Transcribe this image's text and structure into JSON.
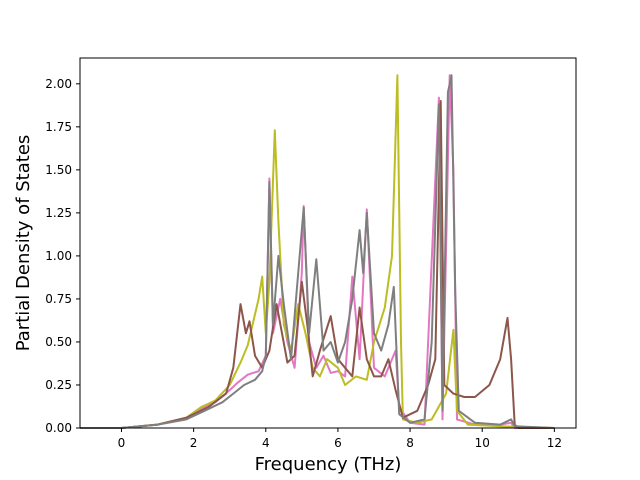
{
  "chart_data": {
    "type": "line",
    "title": "",
    "xlabel": "Frequency (THz)",
    "ylabel": "Partial Density of States",
    "xlim": [
      -1.15,
      12.6
    ],
    "ylim": [
      0,
      2.15
    ],
    "xticks": [
      0,
      2,
      4,
      6,
      8,
      10,
      12
    ],
    "yticks": [
      0.0,
      0.25,
      0.5,
      0.75,
      1.0,
      1.25,
      1.5,
      1.75,
      2.0
    ],
    "xtick_labels": [
      "0",
      "2",
      "4",
      "6",
      "8",
      "10",
      "12"
    ],
    "ytick_labels": [
      "0.00",
      "0.25",
      "0.50",
      "0.75",
      "1.00",
      "1.25",
      "1.50",
      "1.75",
      "2.00"
    ],
    "grid": false,
    "legend": "none",
    "series": [
      {
        "color": "#e377c2",
        "points": [
          [
            -1.15,
            0
          ],
          [
            0,
            0
          ],
          [
            1,
            0.02
          ],
          [
            1.8,
            0.06
          ],
          [
            2.2,
            0.11
          ],
          [
            2.6,
            0.15
          ],
          [
            3.0,
            0.22
          ],
          [
            3.2,
            0.26
          ],
          [
            3.5,
            0.31
          ],
          [
            3.8,
            0.33
          ],
          [
            4.0,
            0.42
          ],
          [
            4.1,
            1.45
          ],
          [
            4.2,
            0.55
          ],
          [
            4.4,
            0.75
          ],
          [
            4.6,
            0.5
          ],
          [
            4.8,
            0.35
          ],
          [
            5.0,
            0.9
          ],
          [
            5.05,
            1.29
          ],
          [
            5.2,
            0.5
          ],
          [
            5.4,
            0.35
          ],
          [
            5.6,
            0.42
          ],
          [
            5.8,
            0.32
          ],
          [
            6.0,
            0.33
          ],
          [
            6.2,
            0.3
          ],
          [
            6.4,
            0.88
          ],
          [
            6.6,
            0.4
          ],
          [
            6.8,
            1.27
          ],
          [
            7.0,
            0.35
          ],
          [
            7.3,
            0.3
          ],
          [
            7.6,
            0.45
          ],
          [
            7.7,
            0.12
          ],
          [
            8.0,
            0.03
          ],
          [
            8.4,
            0.02
          ],
          [
            8.8,
            1.92
          ],
          [
            8.9,
            0.05
          ],
          [
            9.1,
            2.05
          ],
          [
            9.2,
            1.5
          ],
          [
            9.3,
            0.05
          ],
          [
            9.8,
            0.02
          ],
          [
            10.5,
            0.02
          ],
          [
            10.8,
            0.03
          ],
          [
            10.9,
            0
          ],
          [
            12.0,
            0
          ]
        ]
      },
      {
        "color": "#bcbd22",
        "points": [
          [
            -1.15,
            0
          ],
          [
            0,
            0
          ],
          [
            1,
            0.02
          ],
          [
            1.8,
            0.06
          ],
          [
            2.2,
            0.12
          ],
          [
            2.6,
            0.16
          ],
          [
            3.0,
            0.25
          ],
          [
            3.3,
            0.38
          ],
          [
            3.5,
            0.48
          ],
          [
            3.8,
            0.75
          ],
          [
            3.9,
            0.88
          ],
          [
            4.0,
            0.55
          ],
          [
            4.1,
            0.85
          ],
          [
            4.25,
            1.73
          ],
          [
            4.35,
            1.2
          ],
          [
            4.5,
            0.6
          ],
          [
            4.7,
            0.45
          ],
          [
            4.9,
            0.72
          ],
          [
            5.1,
            0.55
          ],
          [
            5.3,
            0.35
          ],
          [
            5.5,
            0.3
          ],
          [
            5.7,
            0.4
          ],
          [
            6.0,
            0.35
          ],
          [
            6.2,
            0.25
          ],
          [
            6.5,
            0.3
          ],
          [
            6.8,
            0.28
          ],
          [
            7.0,
            0.5
          ],
          [
            7.3,
            0.7
          ],
          [
            7.5,
            1.0
          ],
          [
            7.65,
            2.05
          ],
          [
            7.75,
            0.5
          ],
          [
            7.8,
            0.05
          ],
          [
            8.2,
            0.03
          ],
          [
            8.6,
            0.05
          ],
          [
            9.0,
            0.2
          ],
          [
            9.2,
            0.57
          ],
          [
            9.3,
            0.1
          ],
          [
            9.6,
            0.02
          ],
          [
            10.5,
            0.01
          ],
          [
            12.0,
            0
          ]
        ]
      },
      {
        "color": "#8c564b",
        "points": [
          [
            -1.15,
            0
          ],
          [
            0,
            0
          ],
          [
            1,
            0.02
          ],
          [
            1.8,
            0.06
          ],
          [
            2.4,
            0.12
          ],
          [
            2.9,
            0.2
          ],
          [
            3.1,
            0.35
          ],
          [
            3.3,
            0.72
          ],
          [
            3.45,
            0.55
          ],
          [
            3.55,
            0.62
          ],
          [
            3.7,
            0.42
          ],
          [
            3.9,
            0.35
          ],
          [
            4.1,
            0.45
          ],
          [
            4.3,
            0.72
          ],
          [
            4.45,
            0.55
          ],
          [
            4.6,
            0.38
          ],
          [
            4.8,
            0.42
          ],
          [
            5.0,
            0.85
          ],
          [
            5.15,
            0.6
          ],
          [
            5.3,
            0.3
          ],
          [
            5.5,
            0.45
          ],
          [
            5.8,
            0.65
          ],
          [
            6.0,
            0.4
          ],
          [
            6.2,
            0.35
          ],
          [
            6.4,
            0.3
          ],
          [
            6.6,
            0.7
          ],
          [
            6.8,
            0.4
          ],
          [
            7.0,
            0.3
          ],
          [
            7.2,
            0.3
          ],
          [
            7.4,
            0.4
          ],
          [
            7.6,
            0.22
          ],
          [
            7.8,
            0.06
          ],
          [
            8.2,
            0.1
          ],
          [
            8.5,
            0.25
          ],
          [
            8.7,
            0.4
          ],
          [
            8.85,
            1.9
          ],
          [
            8.95,
            0.25
          ],
          [
            9.2,
            0.2
          ],
          [
            9.5,
            0.18
          ],
          [
            9.8,
            0.18
          ],
          [
            10.2,
            0.25
          ],
          [
            10.5,
            0.4
          ],
          [
            10.7,
            0.64
          ],
          [
            10.8,
            0.4
          ],
          [
            10.9,
            0.02
          ],
          [
            11.0,
            0
          ],
          [
            12.0,
            0
          ]
        ]
      },
      {
        "color": "#7f7f7f",
        "points": [
          [
            -1.15,
            0
          ],
          [
            0,
            0
          ],
          [
            1,
            0.02
          ],
          [
            1.8,
            0.05
          ],
          [
            2.3,
            0.1
          ],
          [
            2.8,
            0.15
          ],
          [
            3.1,
            0.2
          ],
          [
            3.4,
            0.25
          ],
          [
            3.7,
            0.28
          ],
          [
            3.9,
            0.33
          ],
          [
            4.0,
            0.42
          ],
          [
            4.1,
            1.43
          ],
          [
            4.2,
            0.6
          ],
          [
            4.35,
            1.0
          ],
          [
            4.5,
            0.72
          ],
          [
            4.7,
            0.4
          ],
          [
            4.9,
            0.9
          ],
          [
            5.05,
            1.28
          ],
          [
            5.2,
            0.55
          ],
          [
            5.4,
            0.98
          ],
          [
            5.6,
            0.45
          ],
          [
            5.8,
            0.5
          ],
          [
            6.0,
            0.38
          ],
          [
            6.2,
            0.5
          ],
          [
            6.4,
            0.75
          ],
          [
            6.6,
            1.15
          ],
          [
            6.7,
            0.9
          ],
          [
            6.8,
            1.25
          ],
          [
            7.0,
            0.55
          ],
          [
            7.2,
            0.45
          ],
          [
            7.4,
            0.6
          ],
          [
            7.55,
            0.82
          ],
          [
            7.7,
            0.08
          ],
          [
            8.0,
            0.03
          ],
          [
            8.4,
            0.05
          ],
          [
            8.6,
            0.5
          ],
          [
            8.8,
            1.88
          ],
          [
            8.9,
            0.1
          ],
          [
            9.05,
            1.95
          ],
          [
            9.15,
            2.05
          ],
          [
            9.25,
            0.8
          ],
          [
            9.35,
            0.1
          ],
          [
            9.8,
            0.03
          ],
          [
            10.5,
            0.02
          ],
          [
            10.8,
            0.05
          ],
          [
            10.9,
            0.01
          ],
          [
            12.0,
            0
          ]
        ]
      }
    ]
  }
}
